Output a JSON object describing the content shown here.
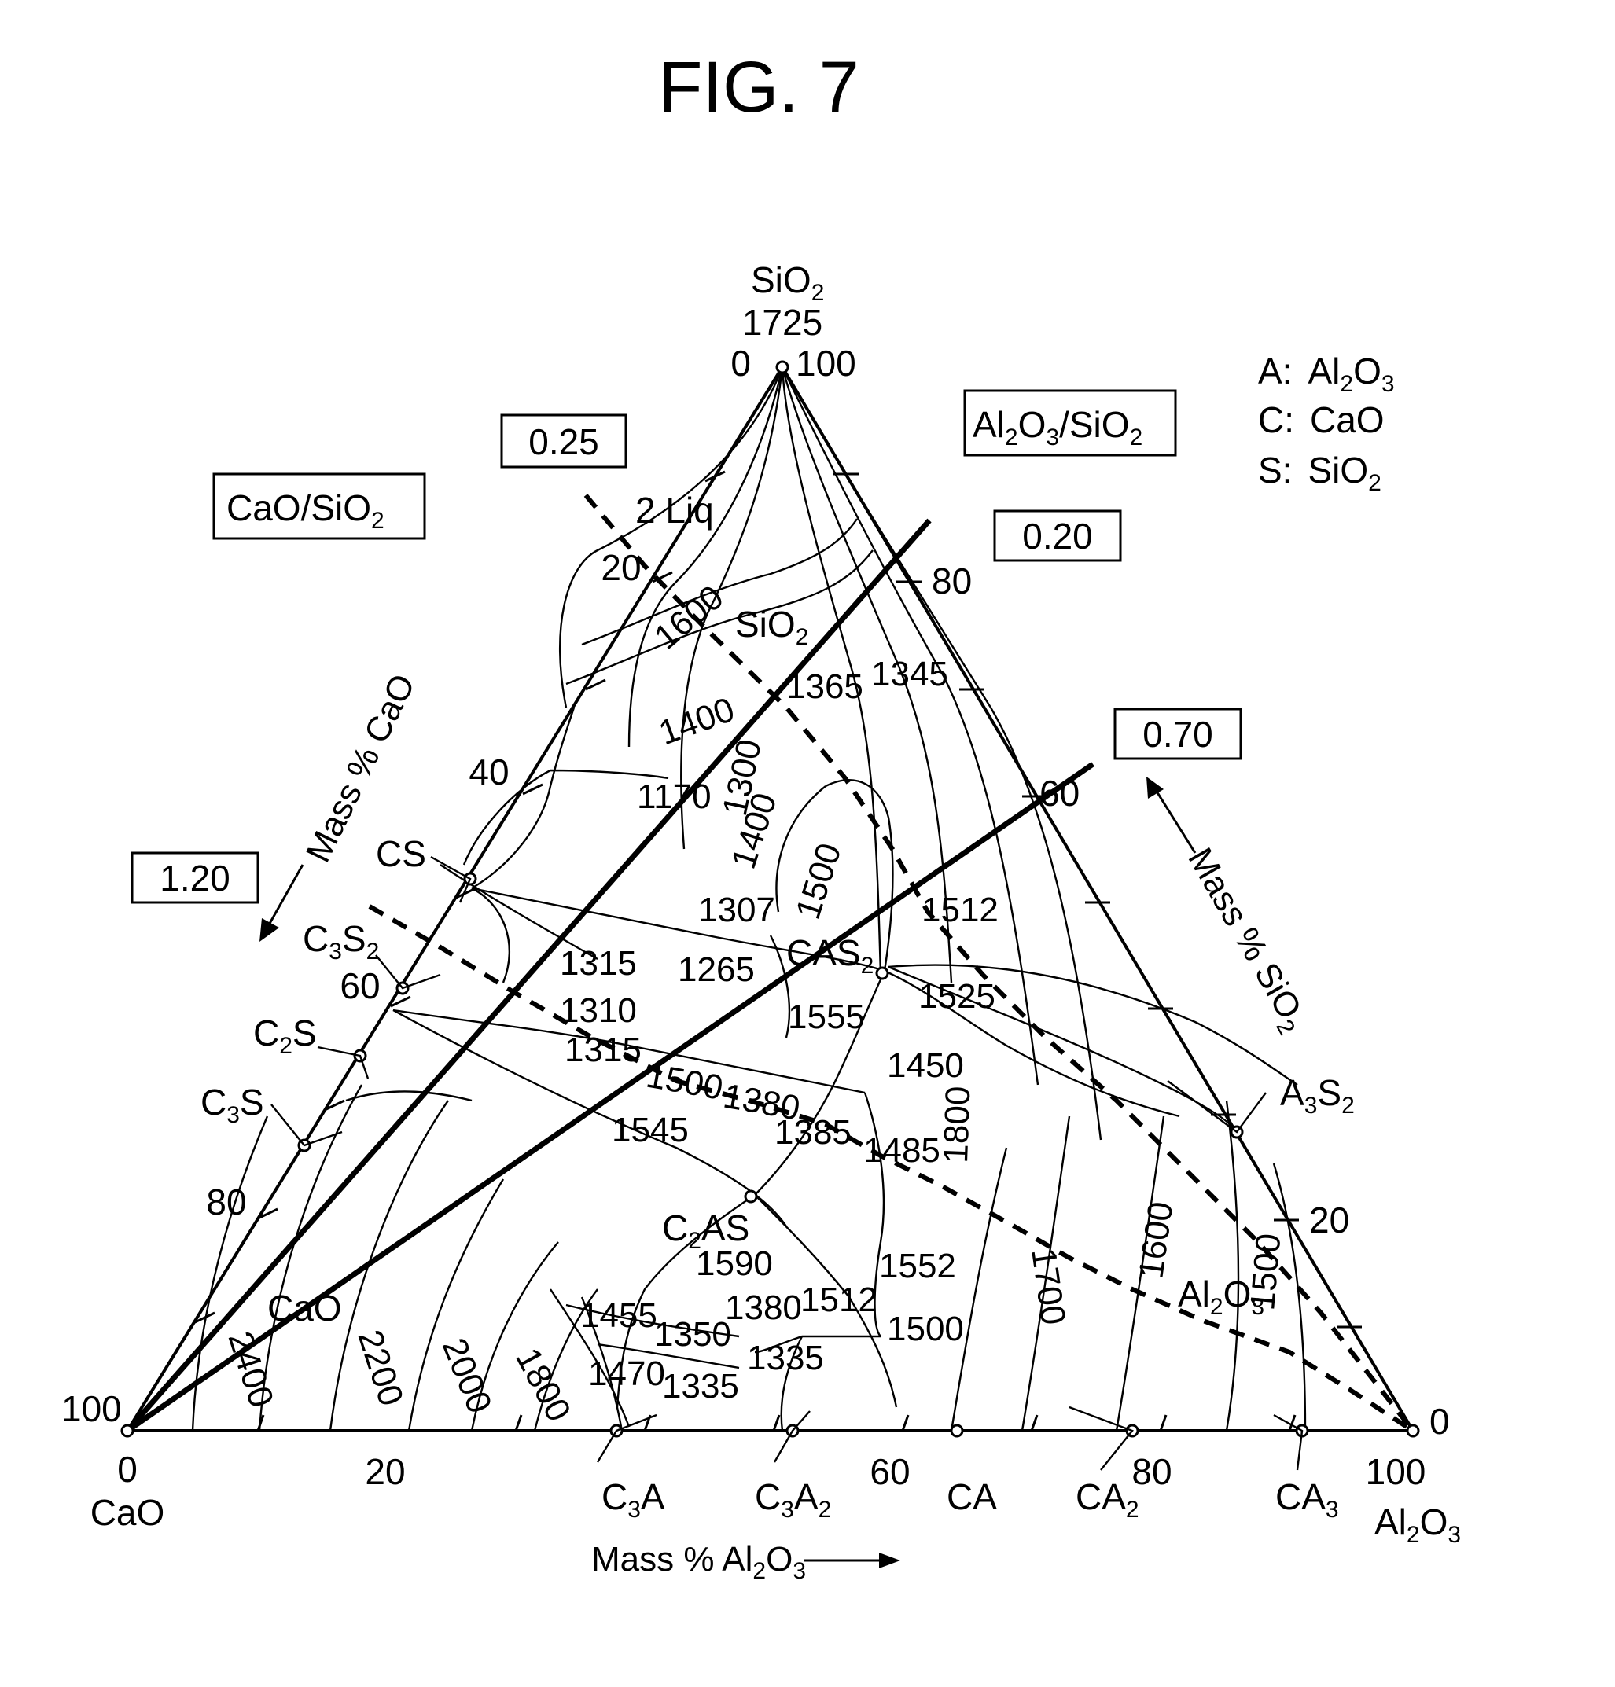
{
  "title": "FIG. 7",
  "apex_top": {
    "label": "SiO",
    "sub": "2",
    "temp": "1725",
    "left": "0",
    "right": "100"
  },
  "corner_left": {
    "top": "100",
    "bottom": "0",
    "name": "CaO"
  },
  "corner_right": {
    "top": "0",
    "bottom": "100",
    "name": "Al",
    "sub1": "2",
    "name2": "O",
    "sub2": "3"
  },
  "axis_bottom": {
    "label": "Mass % Al",
    "sub1": "2",
    "label2": "O",
    "sub2": "3",
    "ticks": [
      "20",
      "60",
      "80"
    ]
  },
  "axis_left": {
    "label": "Mass % CaO",
    "ticks": [
      "20",
      "40",
      "60",
      "80"
    ]
  },
  "axis_right": {
    "label": "Mass % SiO",
    "sub": "2",
    "ticks": [
      "80",
      "60",
      "20"
    ]
  },
  "legend": [
    {
      "key": "A:",
      "value": "Al",
      "s1": "2",
      "v2": "O",
      "s2": "3"
    },
    {
      "key": "C:",
      "value": "CaO",
      "s1": "",
      "v2": "",
      "s2": ""
    },
    {
      "key": "S:",
      "value": "SiO",
      "s1": "2",
      "v2": "",
      "s2": ""
    }
  ],
  "ratio_boxes": {
    "cao_sio2": {
      "a": "CaO/SiO",
      "s": "2"
    },
    "al2o3_sio2": {
      "a": "Al",
      "s1": "2",
      "b": "O",
      "s2": "3",
      "c": "/SiO",
      "s3": "2"
    },
    "v025": "0.25",
    "v120": "1.20",
    "v020": "0.20",
    "v070": "0.70"
  },
  "phases": {
    "cs": "CS",
    "c3s2": {
      "a": "C",
      "s1": "3",
      "b": "S",
      "s2": "2"
    },
    "c2s": {
      "a": "C",
      "s1": "2",
      "b": "S"
    },
    "c3s": {
      "a": "C",
      "s1": "3",
      "b": "S"
    },
    "cas2": {
      "a": "CAS",
      "s1": "2"
    },
    "c2as": {
      "a": "C",
      "s1": "2",
      "b": "AS"
    },
    "a3s2": {
      "a": "A",
      "s1": "3",
      "b": "S",
      "s2": "2"
    },
    "c3a": {
      "a": "C",
      "s1": "3",
      "b": "A"
    },
    "c3a2": {
      "a": "C",
      "s1": "3",
      "b": "A",
      "s2": "2"
    },
    "ca": "CA",
    "ca2": {
      "a": "CA",
      "s1": "2"
    },
    "ca3": {
      "a": "CA",
      "s1": "3"
    },
    "sio2_field": {
      "a": "SiO",
      "s1": "2"
    },
    "al2o3_field": {
      "a": "Al",
      "s1": "2",
      "b": "O",
      "s2": "3"
    },
    "cao_field": "CaO",
    "liq2": "2 Liq"
  },
  "isotherms": {
    "t1600a": "1600",
    "t1400a": "1400",
    "t1365": "1365",
    "t1345": "1345",
    "t1170": "1170",
    "t1300": "1300",
    "t1400b": "1400",
    "t1500a": "1500",
    "t1307": "1307",
    "t1512a": "1512",
    "t1315a": "1315",
    "t1265": "1265",
    "t1525": "1525",
    "t1555": "1555",
    "t1310": "1310",
    "t1315b": "1315",
    "t1500b": "1500",
    "t1380a": "1380",
    "t1450": "1450",
    "t1545": "1545",
    "t1385": "1385",
    "t1485": "1485",
    "t1800a": "1800",
    "t1700": "1700",
    "t1600b": "1600",
    "t1500c": "1500",
    "t1590": "1590",
    "t1552": "1552",
    "t1455": "1455",
    "t1380b": "1380",
    "t1512b": "1512",
    "t1350": "1350",
    "t1500d": "1500",
    "t1335a": "1335",
    "t1470": "1470",
    "t1335b": "1335",
    "t2400": "2400",
    "t2200": "2200",
    "t2000": "2000",
    "t1800b": "1800"
  }
}
